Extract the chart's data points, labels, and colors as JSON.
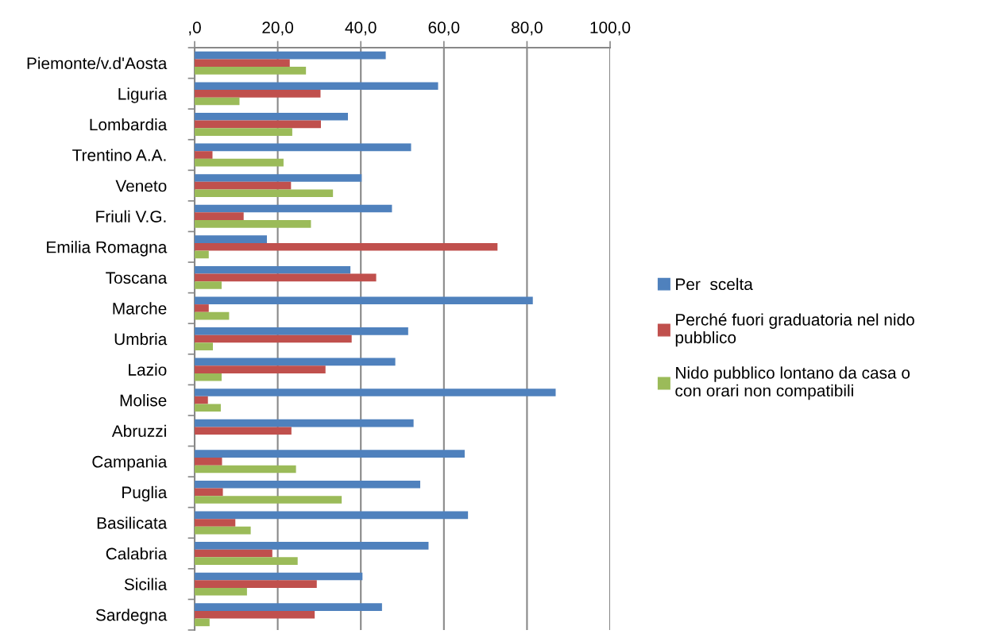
{
  "chart_data": {
    "type": "bar",
    "orientation": "horizontal",
    "categories": [
      "Piemonte/v.d'Aosta",
      "Liguria",
      "Lombardia",
      "Trentino A.A.",
      "Veneto",
      "Friuli V.G.",
      "Emilia Romagna",
      "Toscana",
      "Marche",
      "Umbria",
      "Lazio",
      "Molise",
      "Abruzzi",
      "Campania",
      "Puglia",
      "Basilicata",
      "Calabria",
      "Sicilia",
      "Sardegna"
    ],
    "series": [
      {
        "name": "Per  scelta",
        "color": "#4f81bd",
        "values": [
          46.0,
          58.6,
          36.9,
          52.1,
          40.2,
          47.5,
          17.4,
          37.5,
          81.4,
          51.4,
          48.3,
          86.9,
          52.7,
          65.0,
          54.3,
          65.8,
          56.3,
          40.4,
          45.1
        ]
      },
      {
        "name": "Perché fuori graduatoria nel nido pubblico",
        "color": "#c0504d",
        "values": [
          22.9,
          30.3,
          30.4,
          4.3,
          23.2,
          11.8,
          72.9,
          43.7,
          3.4,
          37.8,
          31.5,
          3.2,
          23.3,
          6.6,
          6.8,
          9.8,
          18.7,
          29.4,
          28.9
        ]
      },
      {
        "name": "Nido pubblico lontano da casa o con orari non compatibili",
        "color": "#9bbb59",
        "values": [
          26.8,
          10.8,
          23.5,
          21.4,
          33.3,
          28.0,
          3.4,
          6.5,
          8.3,
          4.4,
          6.5,
          6.3,
          null,
          24.4,
          35.4,
          13.5,
          24.8,
          12.6,
          3.6
        ]
      }
    ],
    "xlim": [
      0,
      100
    ],
    "xticks": [
      {
        "value": 0,
        "label": ",0"
      },
      {
        "value": 20,
        "label": "20,0"
      },
      {
        "value": 40,
        "label": "40,0"
      },
      {
        "value": 60,
        "label": "60,0"
      },
      {
        "value": 80,
        "label": "80,0"
      },
      {
        "value": 100,
        "label": "100,0"
      }
    ],
    "grid": "x",
    "legend": "right"
  }
}
